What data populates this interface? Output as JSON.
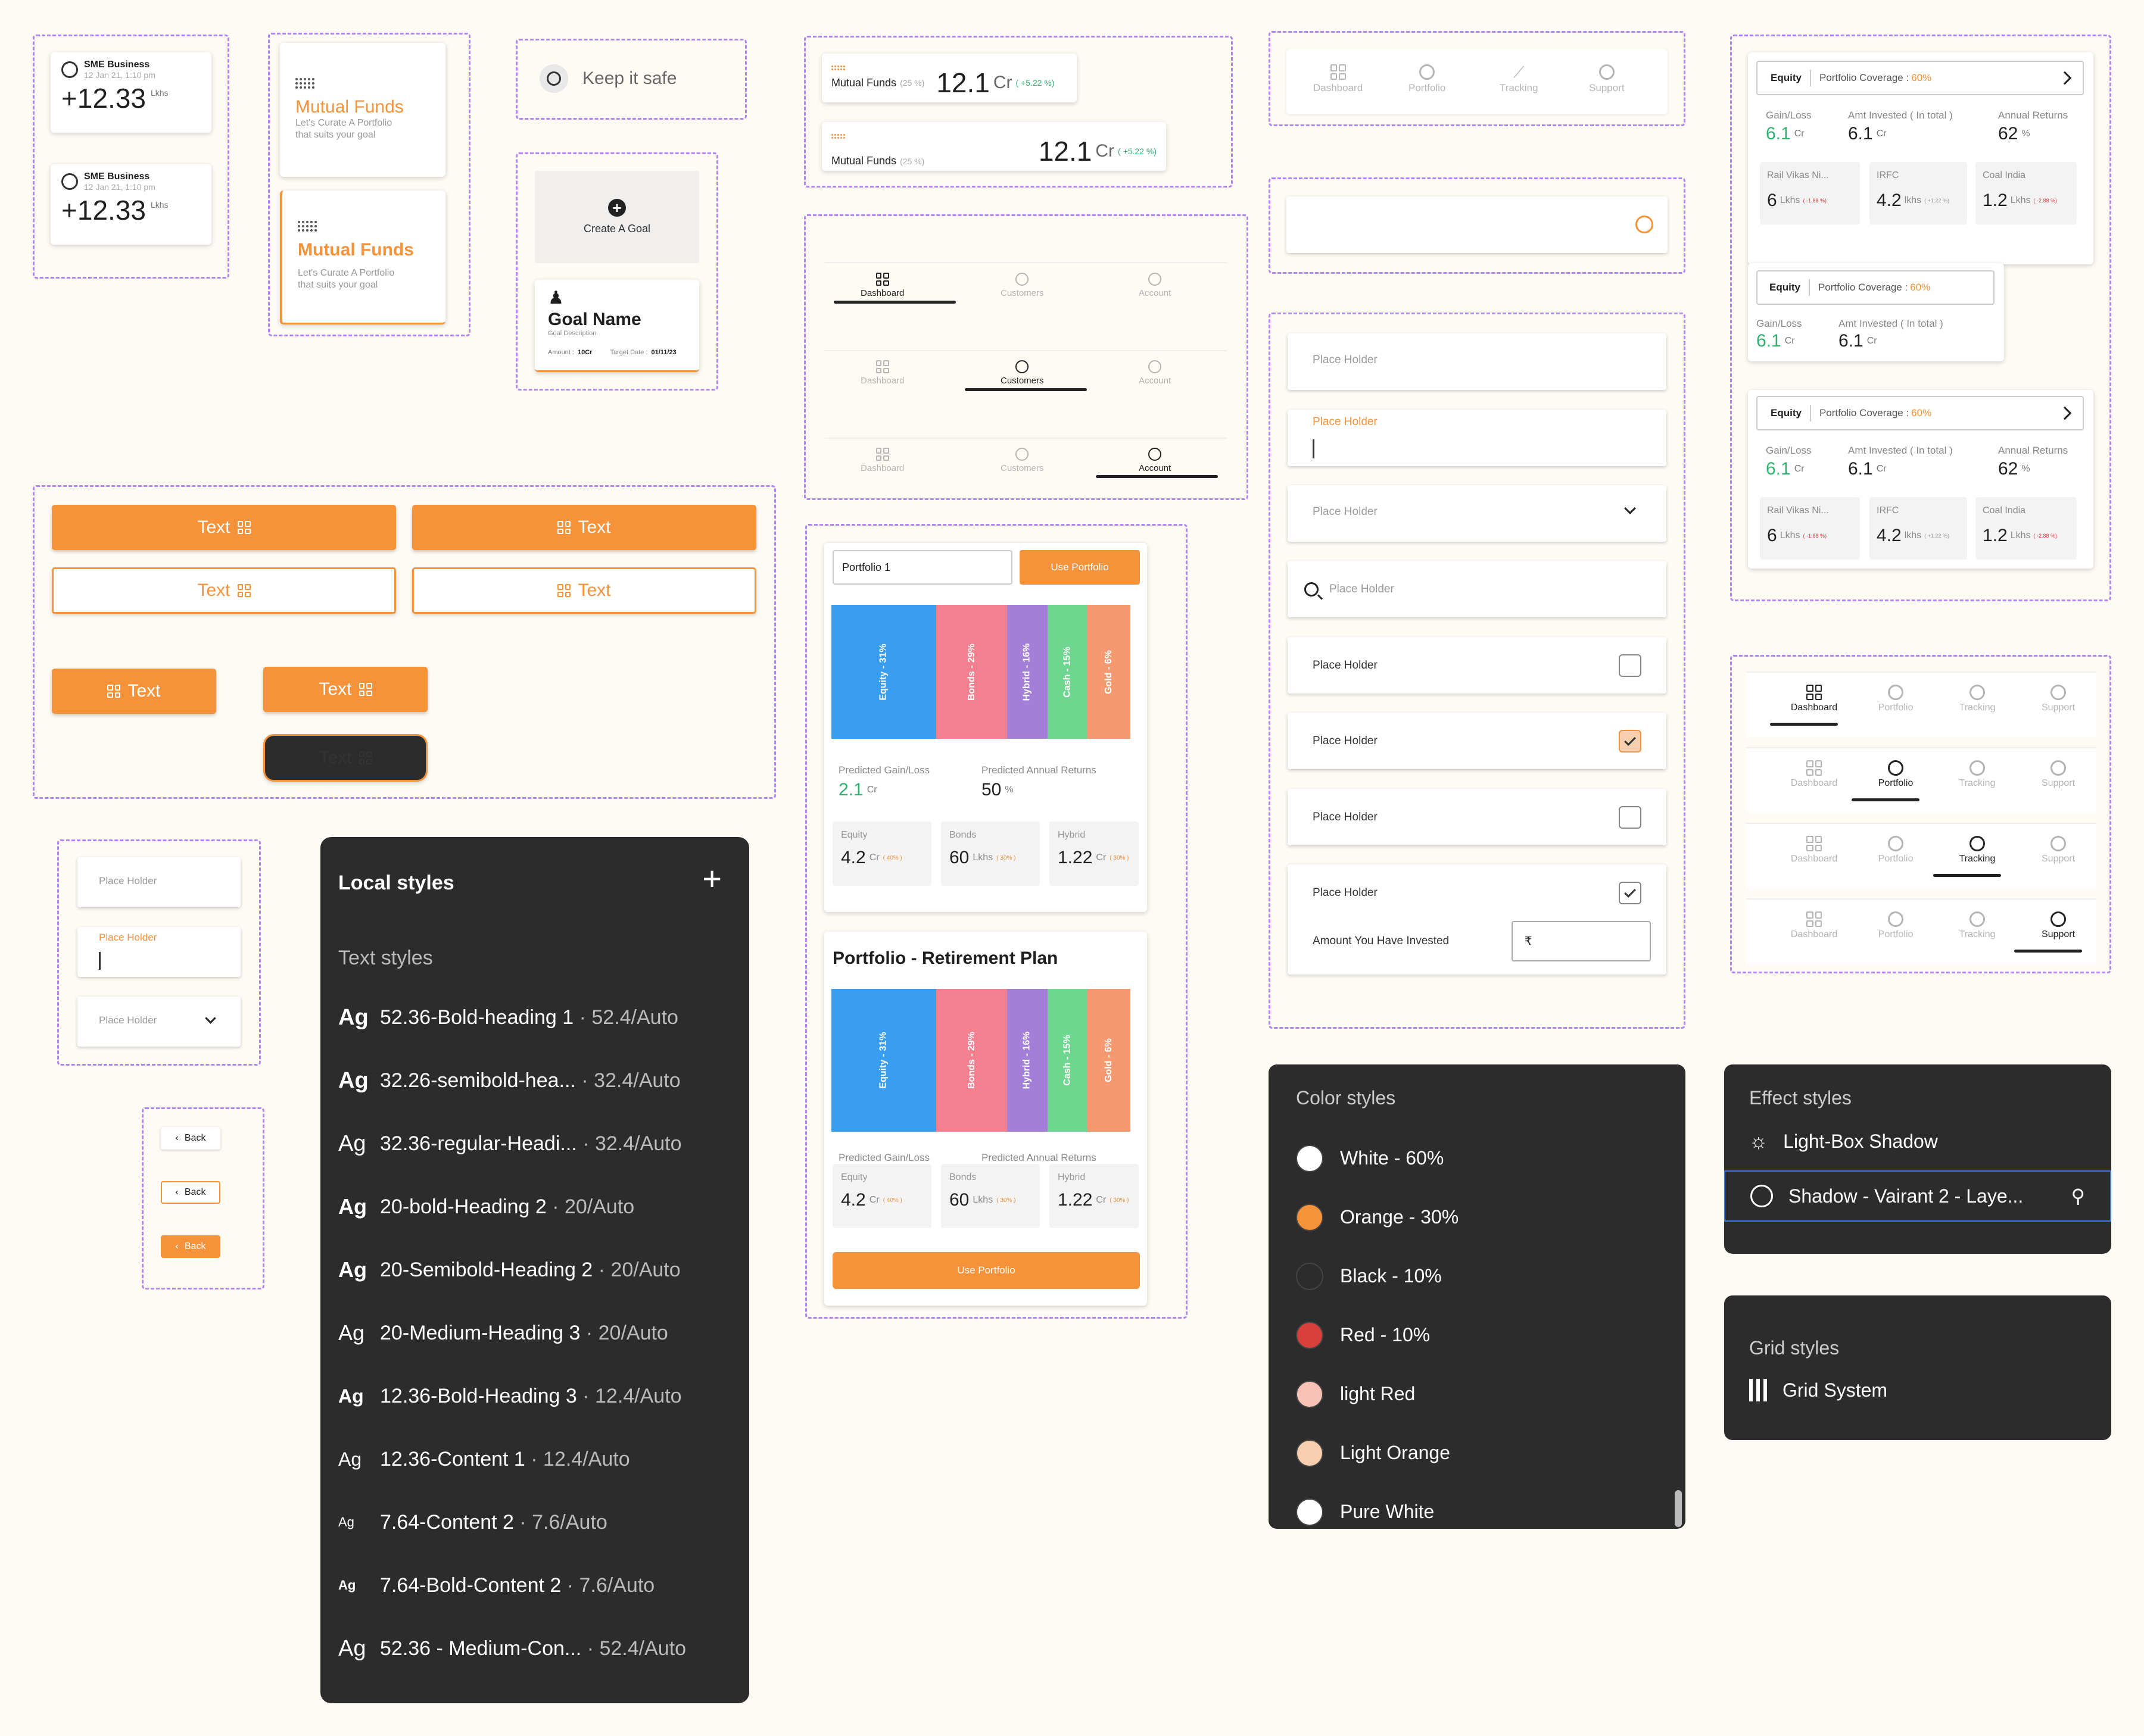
{
  "sme": {
    "title": "SME Business",
    "date": "12 Jan 21, 1:10 pm",
    "value": "+12.33",
    "unit": "Lkhs"
  },
  "mutual": {
    "title": "Mutual Funds",
    "desc1": "Let's Curate A Portfolio",
    "desc2": "that suits your goal"
  },
  "keep": {
    "label": "Keep it safe"
  },
  "goal": {
    "create": "Create A Goal",
    "name": "Goal Name",
    "desc": "Goal Description",
    "amount_label": "Amount :",
    "amount": "10Cr",
    "target_label": "Target Date :",
    "target": "01/11/23"
  },
  "funds": {
    "label": "Mutual Funds",
    "pct": "(25 %)",
    "value": "12.1",
    "unit": "Cr",
    "change": "( +5.22 %)"
  },
  "nav3": {
    "dashboard": "Dashboard",
    "customers": "Customers",
    "account": "Account"
  },
  "nav4": {
    "dashboard": "Dashboard",
    "portfolio": "Portfolio",
    "tracking": "Tracking",
    "support": "Support"
  },
  "equity": {
    "label": "Equity",
    "coverage_label": "Portfolio Coverage :",
    "coverage": "60%",
    "gain_label": "Gain/Loss",
    "gain": "6.1",
    "gain_unit": "Cr",
    "invest_label": "Amt Invested ( In total )",
    "invest": "6.1",
    "invest_unit": "Cr",
    "returns_label": "Annual Returns",
    "returns": "62",
    "returns_unit": "%",
    "stocks": [
      {
        "name": "Rail Vikas Ni...",
        "value": "6",
        "unit": "Lkhs",
        "change": "( -1.88 %)"
      },
      {
        "name": "IRFC",
        "value": "4.2",
        "unit": "lkhs",
        "change": "( +1.22 %)"
      },
      {
        "name": "Coal India",
        "value": "1.2",
        "unit": "Lkhs",
        "change": "( -2.88 %)"
      }
    ]
  },
  "buttons": {
    "text": "Text",
    "back": "Back"
  },
  "inputs": {
    "placeholder": "Place Holder",
    "invested": "Amount You Have Invested",
    "rupee": "₹"
  },
  "portfolio": {
    "name": "Portfolio 1",
    "use": "Use Portfolio",
    "title2": "Portfolio - Retirement Plan",
    "alloc": [
      {
        "label": "Equity - 31%",
        "color": "#3a9ef0"
      },
      {
        "label": "Bonds - 29%",
        "color": "#f2808f"
      },
      {
        "label": "Hybrid - 16%",
        "color": "#a47fd8"
      },
      {
        "label": "Cash - 15%",
        "color": "#6fd68f"
      },
      {
        "label": "Gold - 6%",
        "color": "#f59a70"
      }
    ],
    "pred_gain_label": "Predicted Gain/Loss",
    "pred_gain": "2.1",
    "pred_gain_unit": "Cr",
    "pred_ret_label": "Predicted Annual Returns",
    "pred_ret": "50",
    "pred_ret_unit": "%",
    "tiles": [
      {
        "name": "Equity",
        "value": "4.2",
        "unit": "Cr",
        "pct": "( 40% )"
      },
      {
        "name": "Bonds",
        "value": "60",
        "unit": "Lkhs",
        "pct": "( 30% )"
      },
      {
        "name": "Hybrid",
        "value": "1.22",
        "unit": "Cr",
        "pct": "( 30% )"
      }
    ]
  },
  "local": {
    "title": "Local styles",
    "section": "Text styles",
    "ag": "Ag",
    "styles": [
      {
        "name": "52.36-Bold-heading 1",
        "meta": " · 52.4/Auto"
      },
      {
        "name": "32.26-semibold-hea...",
        "meta": " · 32.4/Auto"
      },
      {
        "name": "32.36-regular-Headi...",
        "meta": " · 32.4/Auto"
      },
      {
        "name": "20-bold-Heading 2",
        "meta": " · 20/Auto"
      },
      {
        "name": "20-Semibold-Heading 2",
        "meta": " · 20/Auto"
      },
      {
        "name": "20-Medium-Heading 3",
        "meta": " · 20/Auto"
      },
      {
        "name": "12.36-Bold-Heading 3",
        "meta": " · 12.4/Auto"
      },
      {
        "name": "12.36-Content 1",
        "meta": " · 12.4/Auto"
      },
      {
        "name": "7.64-Content 2",
        "meta": " · 7.6/Auto"
      },
      {
        "name": "7.64-Bold-Content 2",
        "meta": " · 7.6/Auto"
      },
      {
        "name": "52.36 - Medium-Con...",
        "meta": " · 52.4/Auto"
      }
    ]
  },
  "colors": {
    "title": "Color styles",
    "items": [
      {
        "name": "White - 60%",
        "hex": "#ffffff"
      },
      {
        "name": "Orange - 30%",
        "hex": "#f5923a"
      },
      {
        "name": "Black - 10%",
        "hex": "#2c2c2c"
      },
      {
        "name": "Red - 10%",
        "hex": "#d8403a"
      },
      {
        "name": "light Red",
        "hex": "#f7c2b5"
      },
      {
        "name": "Light Orange",
        "hex": "#f8cfae"
      },
      {
        "name": "Pure White",
        "hex": "#ffffff"
      }
    ]
  },
  "effects": {
    "title": "Effect styles",
    "item1": "Light-Box Shadow",
    "item2": "Shadow - Vairant 2 - Laye..."
  },
  "grid": {
    "title": "Grid styles",
    "item": "Grid System"
  }
}
